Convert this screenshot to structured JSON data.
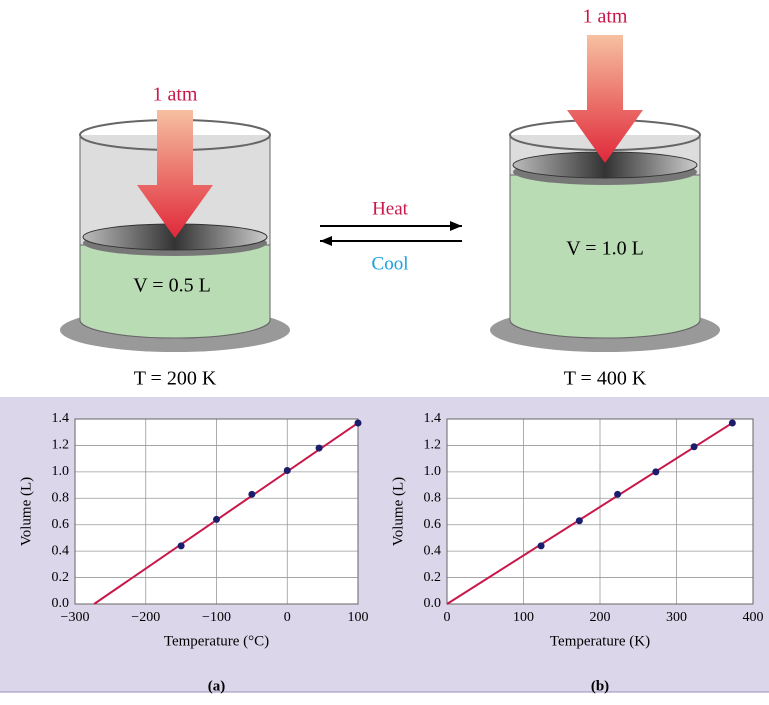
{
  "diagram": {
    "left": {
      "pressure": "1 atm",
      "volume": "V = 0.5 L",
      "temperature": "T = 200 K"
    },
    "right": {
      "pressure": "1 atm",
      "volume": "V = 1.0 L",
      "temperature": "T = 400 K"
    },
    "heat": "Heat",
    "cool": "Cool"
  },
  "chart_data": [
    {
      "type": "scatter",
      "label": "(a)",
      "x_label": "Temperature (°C)",
      "y_label": "Volume (L)",
      "xlim": [
        -300,
        100
      ],
      "xticks": [
        {
          "value": -300,
          "label": "−300"
        },
        {
          "value": -200,
          "label": "−200"
        },
        {
          "value": -100,
          "label": "−100"
        },
        0,
        100
      ],
      "ylim": [
        0,
        1.4
      ],
      "yticks": [
        {
          "value": 0,
          "label": "0.0"
        },
        0.2,
        0.4,
        0.6,
        0.8,
        {
          "value": 1,
          "label": "1.0"
        },
        1.2,
        1.4
      ],
      "grid": true,
      "series": [
        {
          "type": "line",
          "color": "#c8184a",
          "x": [
            -273,
            100
          ],
          "values": [
            0,
            1.37
          ]
        },
        {
          "type": "scatter",
          "color": "#1c1c6c",
          "x": [
            -150,
            -100,
            -50,
            0,
            45,
            100
          ],
          "values": [
            0.44,
            0.64,
            0.83,
            1.01,
            1.18,
            1.37
          ]
        }
      ]
    },
    {
      "type": "scatter",
      "label": "(b)",
      "x_label": "Temperature (K)",
      "y_label": "Volume (L)",
      "xlim": [
        0,
        400
      ],
      "xticks": [
        0,
        100,
        200,
        300,
        400
      ],
      "ylim": [
        0,
        1.4
      ],
      "yticks": [
        {
          "value": 0,
          "label": "0.0"
        },
        0.2,
        0.4,
        0.6,
        0.8,
        {
          "value": 1,
          "label": "1.0"
        },
        1.2,
        1.4
      ],
      "grid": true,
      "series": [
        {
          "type": "line",
          "color": "#c8184a",
          "x": [
            0,
            373
          ],
          "values": [
            0,
            1.37
          ]
        },
        {
          "type": "scatter",
          "color": "#1c1c6c",
          "x": [
            123,
            173,
            223,
            273,
            323,
            373
          ],
          "values": [
            0.44,
            0.63,
            0.83,
            1.0,
            1.19,
            1.37
          ]
        }
      ]
    }
  ]
}
